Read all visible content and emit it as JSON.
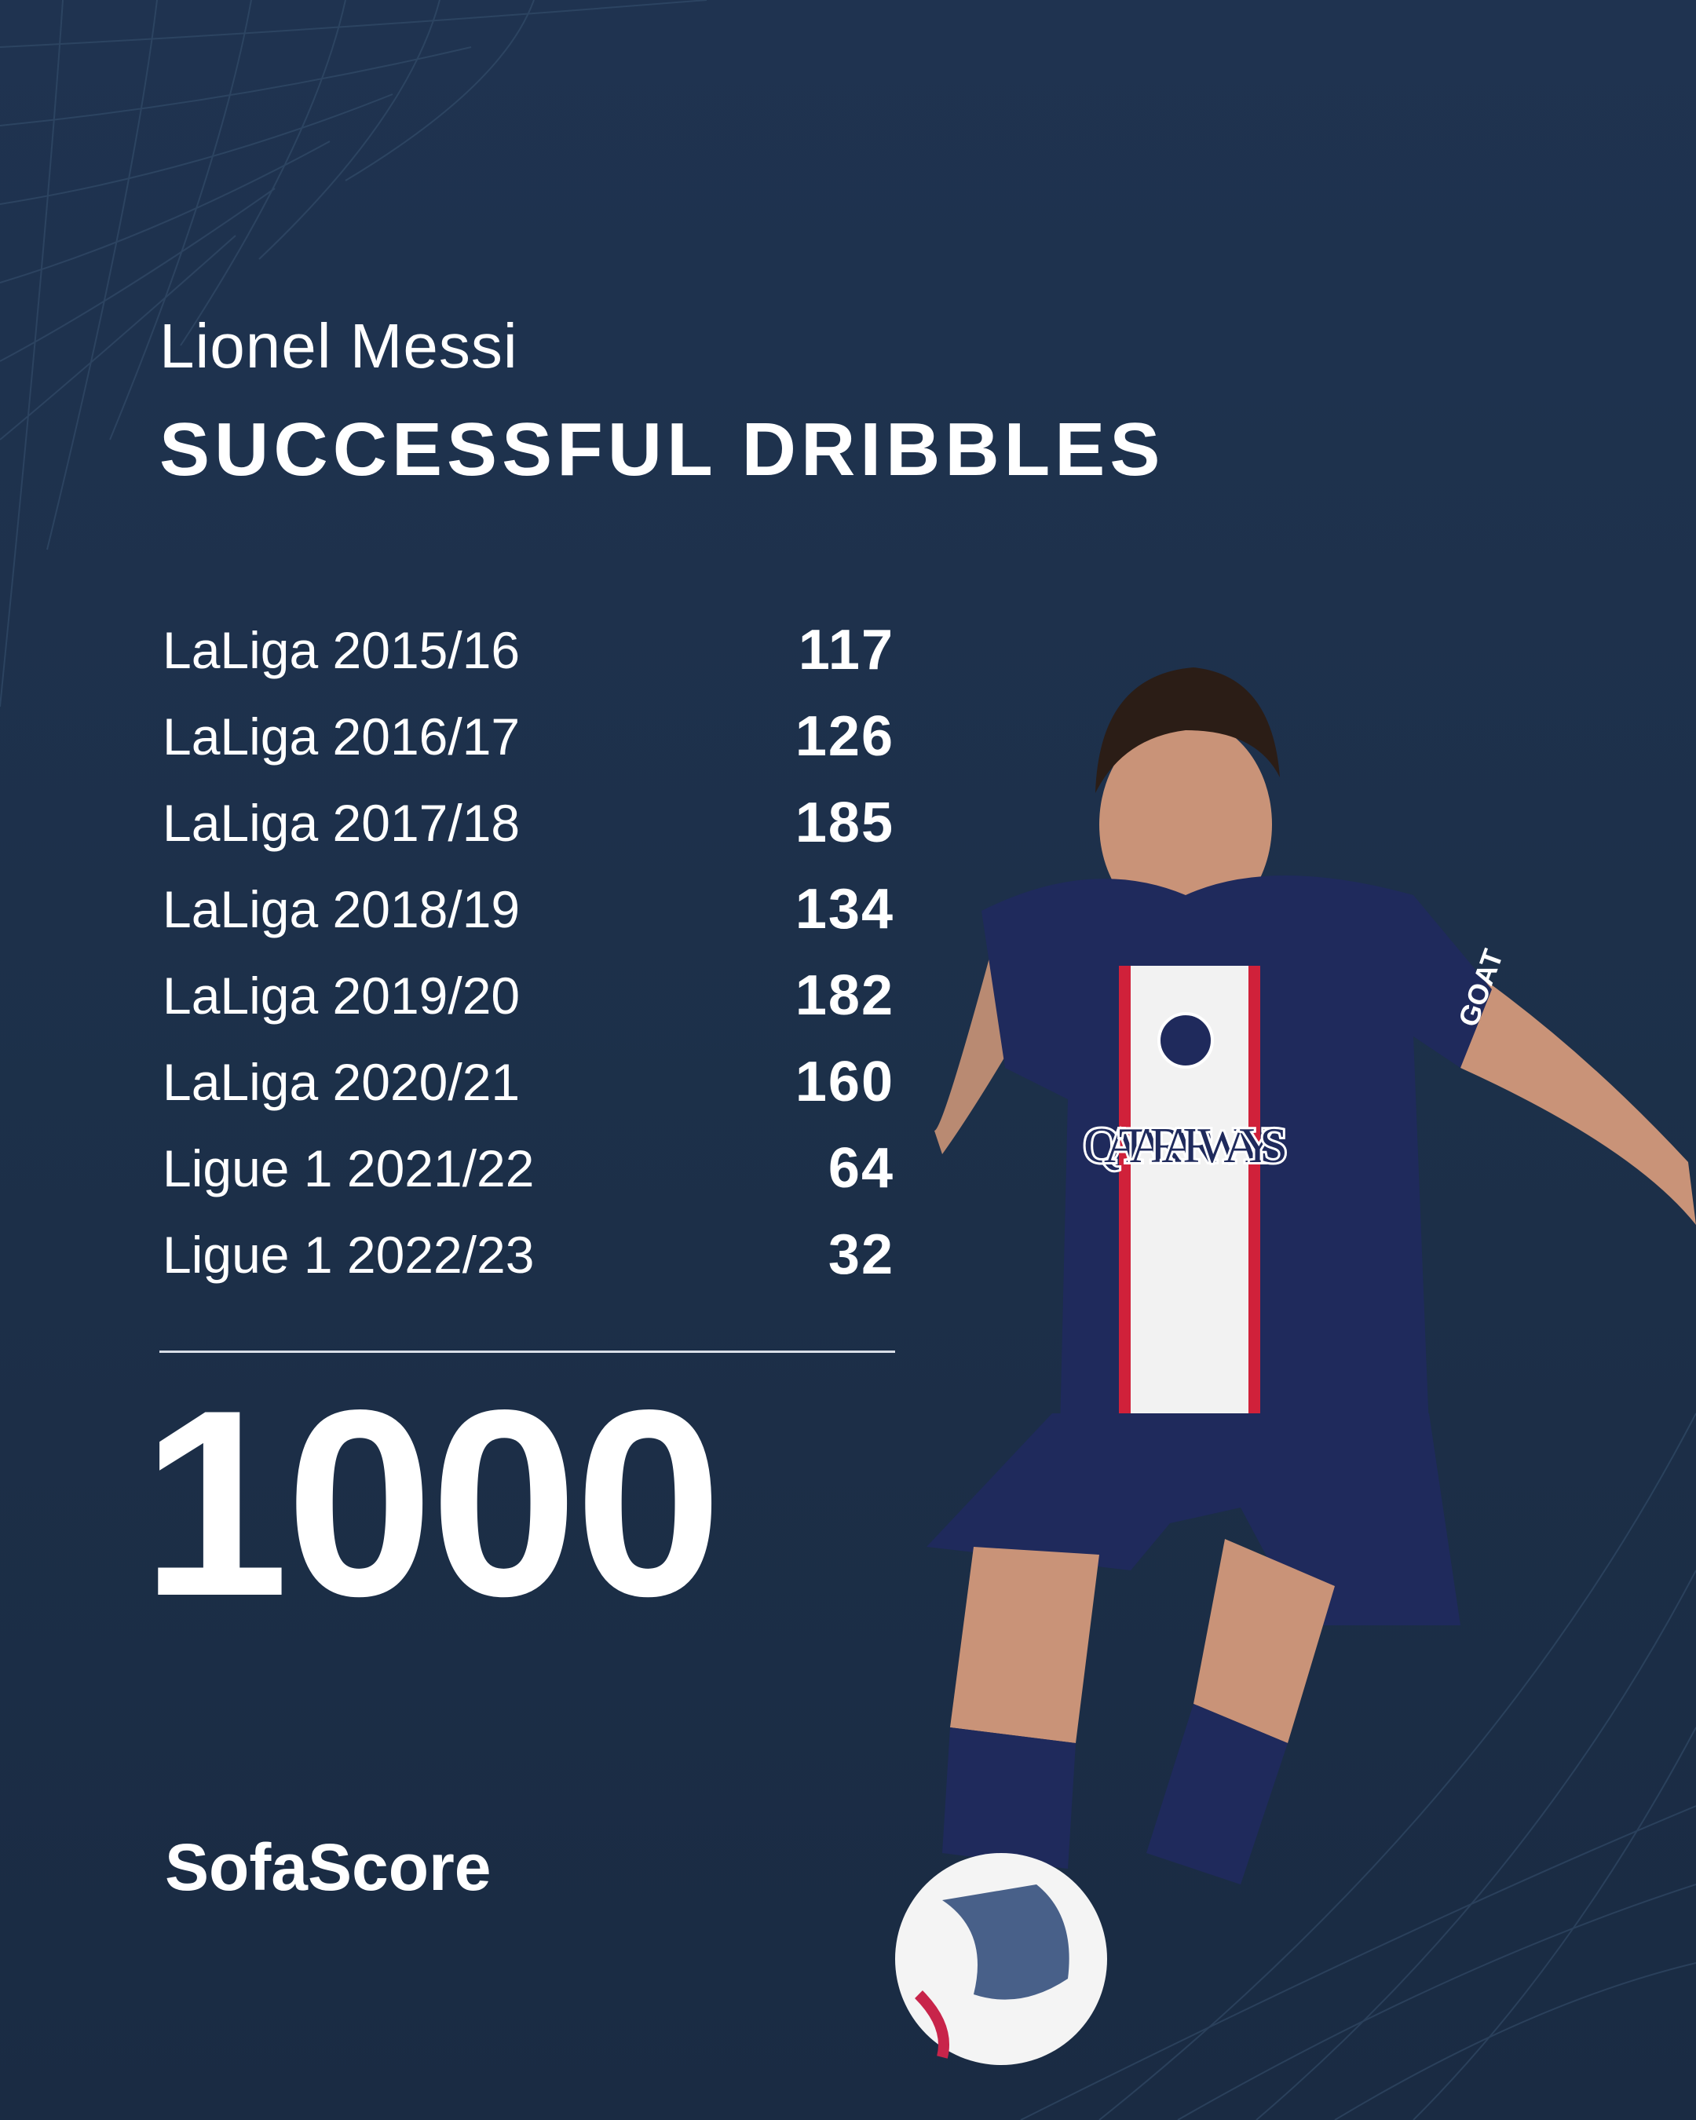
{
  "header": {
    "player": "Lionel Messi",
    "title": "SUCCESSFUL DRIBBLES"
  },
  "rows": [
    {
      "label": "LaLiga 2015/16",
      "value": "117"
    },
    {
      "label": "LaLiga 2016/17",
      "value": "126"
    },
    {
      "label": "LaLiga 2017/18",
      "value": "185"
    },
    {
      "label": "LaLiga 2018/19",
      "value": "134"
    },
    {
      "label": "LaLiga 2019/20",
      "value": "182"
    },
    {
      "label": "LaLiga 2020/21",
      "value": "160"
    },
    {
      "label": "Ligue 1 2021/22",
      "value": "64"
    },
    {
      "label": "Ligue 1 2022/23",
      "value": "32"
    }
  ],
  "total": "1000",
  "brand": "SofaScore",
  "photo": {
    "shirt_sponsor": "QATAR AIRWAYS",
    "sleeve": "GOAT"
  },
  "colors": {
    "background": "#1d304a",
    "text": "#ffffff",
    "shirt": "#1f2a5c",
    "stripe_red": "#d0213a"
  }
}
